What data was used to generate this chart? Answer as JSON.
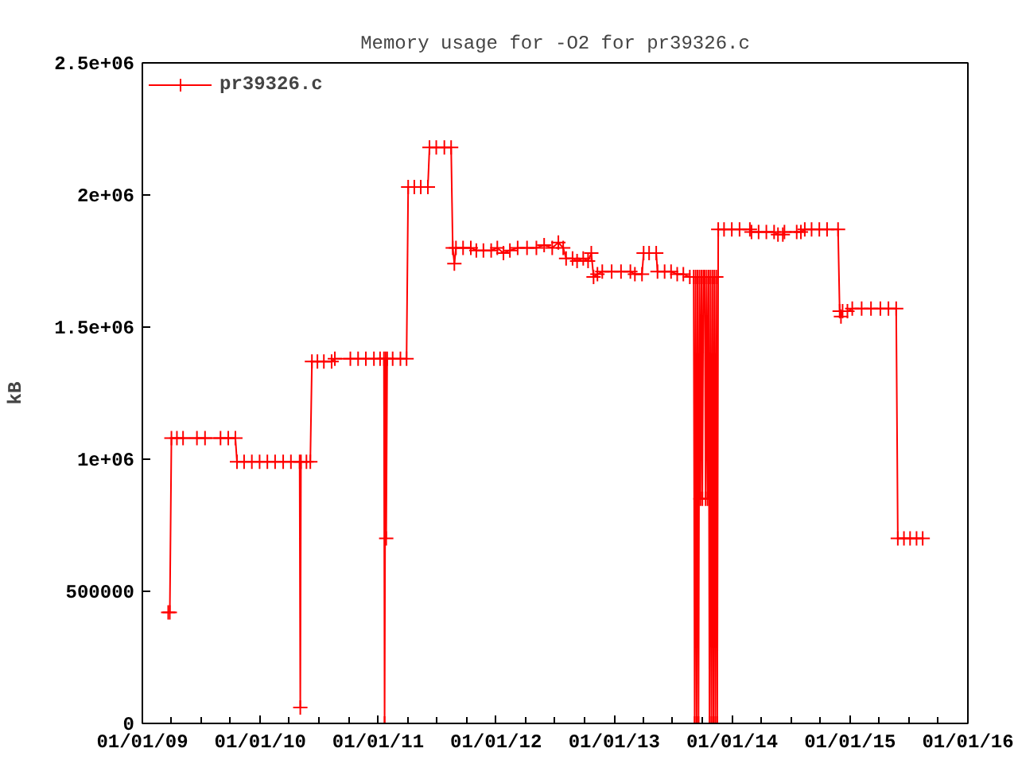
{
  "chart_data": {
    "type": "line",
    "title": "Memory usage for -O2 for pr39326.c",
    "ylabel": "kB",
    "x": [
      "2009-03-22",
      "2009-03-27",
      "2009-04-01",
      "2009-04-18",
      "2009-05-07",
      "2009-06-19",
      "2009-07-14",
      "2009-08-31",
      "2009-09-24",
      "2009-10-16",
      "2009-10-21",
      "2009-11-12",
      "2009-12-06",
      "2009-12-30",
      "2010-01-23",
      "2010-02-16",
      "2010-03-13",
      "2010-04-06",
      "2010-05-03",
      "2010-05-05",
      "2010-05-07",
      "2010-05-24",
      "2010-06-05",
      "2010-06-10",
      "2010-06-27",
      "2010-07-17",
      "2010-08-10",
      "2010-08-20",
      "2010-10-07",
      "2010-10-31",
      "2010-11-24",
      "2010-12-19",
      "2011-01-07",
      "2011-01-19",
      "2011-01-21",
      "2011-01-24",
      "2011-01-26",
      "2011-01-29",
      "2011-02-15",
      "2011-03-11",
      "2011-03-30",
      "2011-04-04",
      "2011-04-23",
      "2011-05-13",
      "2011-06-04",
      "2011-06-09",
      "2011-06-30",
      "2011-07-25",
      "2011-08-15",
      "2011-08-20",
      "2011-08-25",
      "2011-08-30",
      "2011-09-21",
      "2011-10-15",
      "2011-11-01",
      "2011-11-23",
      "2011-12-17",
      "2012-01-05",
      "2012-01-24",
      "2012-02-13",
      "2012-03-08",
      "2012-04-06",
      "2012-05-05",
      "2012-05-29",
      "2012-06-23",
      "2012-07-12",
      "2012-07-27",
      "2012-08-05",
      "2012-08-25",
      "2012-09-08",
      "2012-09-27",
      "2012-10-12",
      "2012-10-22",
      "2012-10-29",
      "2012-11-10",
      "2012-11-25",
      "2012-12-24",
      "2013-01-22",
      "2013-02-20",
      "2013-03-06",
      "2013-03-28",
      "2013-04-02",
      "2013-04-19",
      "2013-05-11",
      "2013-05-15",
      "2013-06-06",
      "2013-06-26",
      "2013-07-15",
      "2013-08-03",
      "2013-08-23",
      "2013-09-04",
      "2013-09-07",
      "2013-09-10",
      "2013-09-13",
      "2013-09-16",
      "2013-09-19",
      "2013-09-22",
      "2013-09-25",
      "2013-09-28",
      "2013-10-01",
      "2013-10-04",
      "2013-10-08",
      "2013-10-11",
      "2013-10-14",
      "2013-10-17",
      "2013-10-20",
      "2013-10-23",
      "2013-10-26",
      "2013-10-29",
      "2013-11-01",
      "2013-11-04",
      "2013-11-07",
      "2013-11-10",
      "2013-11-13",
      "2013-11-16",
      "2013-11-19",
      "2013-12-07",
      "2013-12-31",
      "2014-01-24",
      "2014-02-25",
      "2014-03-02",
      "2014-03-24",
      "2014-04-17",
      "2014-05-11",
      "2014-05-23",
      "2014-06-07",
      "2014-06-12",
      "2014-07-20",
      "2014-08-02",
      "2014-08-14",
      "2014-09-04",
      "2014-09-28",
      "2014-10-22",
      "2014-11-25",
      "2014-11-30",
      "2014-12-04",
      "2014-12-09",
      "2014-12-24",
      "2015-01-08",
      "2015-02-06",
      "2015-03-07",
      "2015-04-05",
      "2015-04-30",
      "2015-05-24",
      "2015-05-29",
      "2015-06-17",
      "2015-07-06",
      "2015-07-26",
      "2015-08-14"
    ],
    "series": [
      {
        "name": "pr39326.c",
        "color": "#ff0000",
        "values": [
          420000,
          420000,
          1080000,
          1080000,
          1080000,
          1080000,
          1080000,
          1080000,
          1080000,
          1080000,
          990000,
          990000,
          990000,
          990000,
          990000,
          990000,
          990000,
          990000,
          990000,
          60000,
          990000,
          990000,
          990000,
          1370000,
          1370000,
          1370000,
          1370000,
          1380000,
          1380000,
          1380000,
          1380000,
          1380000,
          1380000,
          1380000,
          0,
          1380000,
          700000,
          1380000,
          1380000,
          1380000,
          1380000,
          2030000,
          2030000,
          2030000,
          2030000,
          2180000,
          2180000,
          2180000,
          2180000,
          1800000,
          1740000,
          1800000,
          1800000,
          1800000,
          1790000,
          1790000,
          1790000,
          1800000,
          1780000,
          1790000,
          1800000,
          1800000,
          1800000,
          1810000,
          1800000,
          1820000,
          1800000,
          1760000,
          1760000,
          1750000,
          1760000,
          1750000,
          1780000,
          1690000,
          1700000,
          1710000,
          1710000,
          1710000,
          1710000,
          1700000,
          1700000,
          1780000,
          1780000,
          1780000,
          1710000,
          1710000,
          1710000,
          1700000,
          1700000,
          1690000,
          1690000,
          0,
          1690000,
          0,
          1690000,
          0,
          1690000,
          850000,
          1690000,
          850000,
          1690000,
          1690000,
          850000,
          1690000,
          850000,
          1690000,
          0,
          1690000,
          0,
          1690000,
          0,
          1690000,
          0,
          1690000,
          0,
          1870000,
          1870000,
          1870000,
          1870000,
          1870000,
          1860000,
          1860000,
          1860000,
          1860000,
          1850000,
          1850000,
          1860000,
          1860000,
          1860000,
          1870000,
          1870000,
          1870000,
          1870000,
          1870000,
          1560000,
          1540000,
          1560000,
          1560000,
          1570000,
          1570000,
          1570000,
          1570000,
          1570000,
          1570000,
          700000,
          700000,
          700000,
          700000,
          700000
        ]
      }
    ],
    "xlim": [
      "2009-01-01",
      "2016-01-01"
    ],
    "ylim": [
      0,
      2500000
    ],
    "xticks": [
      {
        "value": "2009-01-01",
        "label": "01/01/09"
      },
      {
        "value": "2009-04-01",
        "label": null
      },
      {
        "value": "2009-07-01",
        "label": null
      },
      {
        "value": "2009-10-01",
        "label": null
      },
      {
        "value": "2010-01-01",
        "label": "01/01/10"
      },
      {
        "value": "2010-04-01",
        "label": null
      },
      {
        "value": "2010-07-01",
        "label": null
      },
      {
        "value": "2010-10-01",
        "label": null
      },
      {
        "value": "2011-01-01",
        "label": "01/01/11"
      },
      {
        "value": "2011-04-01",
        "label": null
      },
      {
        "value": "2011-07-01",
        "label": null
      },
      {
        "value": "2011-10-01",
        "label": null
      },
      {
        "value": "2012-01-01",
        "label": "01/01/12"
      },
      {
        "value": "2012-04-01",
        "label": null
      },
      {
        "value": "2012-07-01",
        "label": null
      },
      {
        "value": "2012-10-01",
        "label": null
      },
      {
        "value": "2013-01-01",
        "label": "01/01/13"
      },
      {
        "value": "2013-04-01",
        "label": null
      },
      {
        "value": "2013-07-01",
        "label": null
      },
      {
        "value": "2013-10-01",
        "label": null
      },
      {
        "value": "2014-01-01",
        "label": "01/01/14"
      },
      {
        "value": "2014-04-01",
        "label": null
      },
      {
        "value": "2014-07-01",
        "label": null
      },
      {
        "value": "2014-10-01",
        "label": null
      },
      {
        "value": "2015-01-01",
        "label": "01/01/15"
      },
      {
        "value": "2015-04-01",
        "label": null
      },
      {
        "value": "2015-07-01",
        "label": null
      },
      {
        "value": "2015-10-01",
        "label": null
      },
      {
        "value": "2016-01-01",
        "label": "01/01/16"
      }
    ],
    "yticks": [
      0,
      500000,
      {
        "value": 1000000,
        "label": "1e+06"
      },
      {
        "value": 1500000,
        "label": "1.5e+06"
      },
      {
        "value": 2000000,
        "label": "2e+06"
      },
      {
        "value": 2500000,
        "label": "2.5e+06"
      }
    ],
    "grid": false,
    "legend": "top left",
    "marker": "cross",
    "line_style": "solid"
  }
}
